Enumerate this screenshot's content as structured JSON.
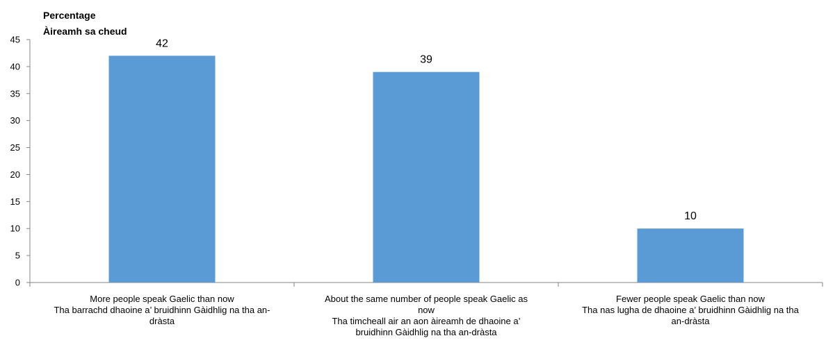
{
  "chart_data": {
    "type": "bar",
    "ylabel_line1": "Percentage",
    "ylabel_line2": "Àireamh sa cheud",
    "ylim": [
      0,
      45
    ],
    "yticks": [
      "0",
      "5",
      "10",
      "15",
      "20",
      "25",
      "30",
      "35",
      "40",
      "45"
    ],
    "categories": [
      "More people speak Gaelic than now\nTha barrachd dhaoine a’ bruidhinn Gàidhlig na tha an-\ndràsta",
      "About the same number of people speak Gaelic as\nnow\nTha timcheall air an aon àireamh de dhaoine a’\nbruidhinn Gàidhlig na tha an-dràsta",
      "Fewer people speak Gaelic  than now\nTha nas lugha de dhaoine a’ bruidhinn Gàidhlig na tha\nan-dràsta"
    ],
    "values": [
      42,
      39,
      10
    ],
    "data_labels": [
      "42",
      "39",
      "10"
    ],
    "bar_color": "#5b9bd5",
    "grid": false,
    "legend": "none"
  }
}
